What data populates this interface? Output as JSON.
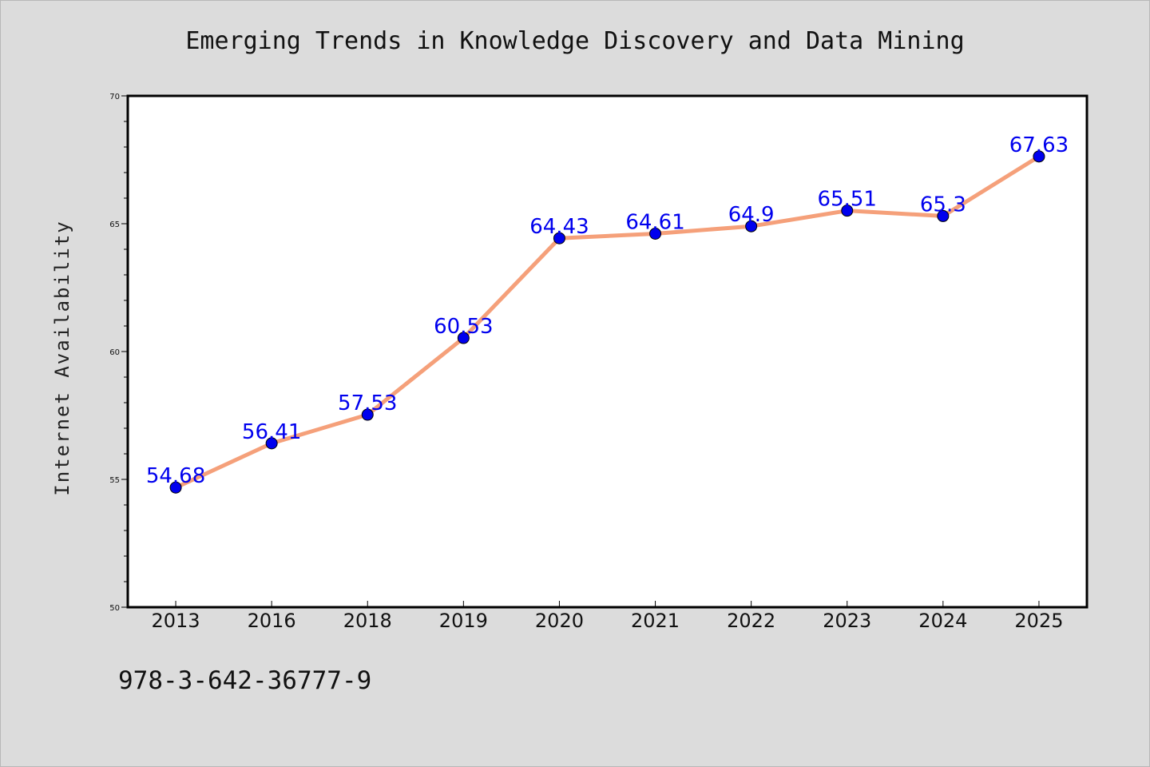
{
  "chart_data": {
    "type": "line",
    "title": "Emerging Trends in Knowledge Discovery and Data Mining",
    "xlabel": "",
    "ylabel": "Internet Availability",
    "categories": [
      "2013",
      "2016",
      "2018",
      "2019",
      "2020",
      "2021",
      "2022",
      "2023",
      "2024",
      "2025"
    ],
    "series": [
      {
        "values": [
          54.68,
          56.41,
          57.53,
          60.53,
          64.43,
          64.61,
          64.9,
          65.51,
          65.3,
          67.63
        ],
        "data_labels": [
          "54.68",
          "56.41",
          "57.53",
          "60.53",
          "64.43",
          "64.61",
          "64.9",
          "65.51",
          "65.3",
          "67.63"
        ]
      }
    ],
    "ylim": [
      50,
      70
    ],
    "yticks": [
      "50",
      "55",
      "60",
      "65",
      "70"
    ],
    "grid": false,
    "legend": "none",
    "colors": {
      "line": "#f5a07a",
      "marker": "#0000ee",
      "label": "#0000ee",
      "background": "#dcdcdc",
      "plot_background": "#ffffff"
    }
  },
  "footer": {
    "isbn": "978-3-642-36777-9"
  }
}
